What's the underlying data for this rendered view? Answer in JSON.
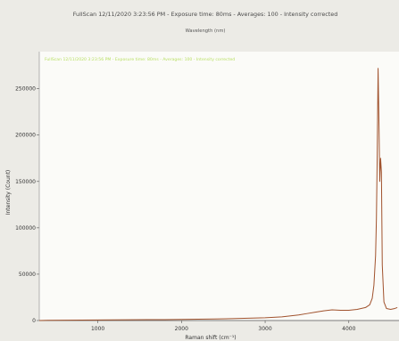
{
  "chart_data": {
    "type": "line",
    "title": "FullScan 12/11/2020 3:23:56 PM - Exposure time: 80ms - Averages: 100 - Intensity corrected",
    "secondary_axis_label": "Wavelength (nm)",
    "xlabel": "Raman shift (cm⁻¹)",
    "ylabel": "Intensity (Count)",
    "legend_text": "FullScan 12/11/2020 3:23:56 PM - Exposure time: 80ms - Averages: 100 - Intensity corrected",
    "legend_placement": "top-left",
    "xlim": [
      300,
      4600
    ],
    "ylim": [
      0,
      290000
    ],
    "x_ticks": [
      1000,
      2000,
      3000,
      4000
    ],
    "x_tick_labels": [
      "1000",
      "2000",
      "3000",
      "4000"
    ],
    "y_ticks": [
      0,
      50000,
      100000,
      150000,
      200000,
      250000
    ],
    "y_tick_labels": [
      "0",
      "50000",
      "100000",
      "150000",
      "200000",
      "250000"
    ],
    "grid": false,
    "series": [
      {
        "color": "#a0522d",
        "x": [
          300,
          400,
          600,
          800,
          1000,
          1200,
          1400,
          1600,
          1800,
          2000,
          2200,
          2400,
          2600,
          2800,
          3000,
          3200,
          3400,
          3500,
          3600,
          3700,
          3800,
          3900,
          4000,
          4100,
          4200,
          4250,
          4280,
          4300,
          4320,
          4330,
          4340,
          4350,
          4360,
          4370,
          4380,
          4390,
          4400,
          4420,
          4450,
          4500,
          4550,
          4580
        ],
        "y": [
          0,
          300,
          400,
          500,
          600,
          700,
          800,
          900,
          1000,
          1200,
          1400,
          1700,
          2000,
          2500,
          3000,
          4000,
          6000,
          7500,
          9000,
          10500,
          11500,
          11000,
          11000,
          12000,
          14000,
          17000,
          24000,
          38000,
          70000,
          110000,
          180000,
          272000,
          215000,
          150000,
          175000,
          160000,
          60000,
          20000,
          13000,
          12000,
          13000,
          14000
        ]
      }
    ]
  }
}
